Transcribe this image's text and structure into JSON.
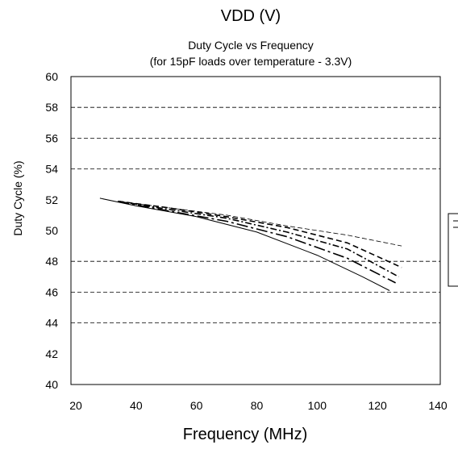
{
  "header": {
    "vdd_label": "VDD (V)"
  },
  "chart_data": {
    "type": "line",
    "title": "Duty Cycle vs Frequency",
    "subtitle": "(for 15pF loads over temperature - 3.3V)",
    "xlabel": "Frequency (MHz)",
    "ylabel": "Duty Cycle (%)",
    "xlim": [
      20,
      140
    ],
    "ylim": [
      40,
      60
    ],
    "xticks": [
      20,
      40,
      60,
      80,
      100,
      120,
      140
    ],
    "yticks": [
      40,
      42,
      44,
      46,
      48,
      50,
      52,
      54,
      56,
      58,
      60
    ],
    "grid": {
      "y_dashed_at": [
        44,
        46,
        48,
        54,
        56,
        58
      ]
    },
    "series": [
      {
        "style": "thin-dashed",
        "x": [
          34,
          50,
          70,
          90,
          110,
          128
        ],
        "y": [
          51.9,
          51.5,
          51.0,
          50.3,
          49.7,
          49.0
        ]
      },
      {
        "style": "dashed",
        "x": [
          34,
          50,
          70,
          90,
          110,
          128
        ],
        "y": [
          51.9,
          51.5,
          50.9,
          50.2,
          49.2,
          47.6
        ]
      },
      {
        "style": "dash-dot",
        "x": [
          34,
          50,
          70,
          90,
          110,
          127
        ],
        "y": [
          51.9,
          51.4,
          50.8,
          49.9,
          48.8,
          47.0
        ]
      },
      {
        "style": "long-dash-dot",
        "x": [
          34,
          50,
          70,
          90,
          110,
          126
        ],
        "y": [
          51.9,
          51.3,
          50.6,
          49.6,
          48.2,
          46.6
        ]
      },
      {
        "style": "solid",
        "x": [
          28,
          40,
          60,
          80,
          100,
          115,
          124
        ],
        "y": [
          52.1,
          51.6,
          50.9,
          49.9,
          48.4,
          47.0,
          46.1
        ]
      }
    ]
  }
}
